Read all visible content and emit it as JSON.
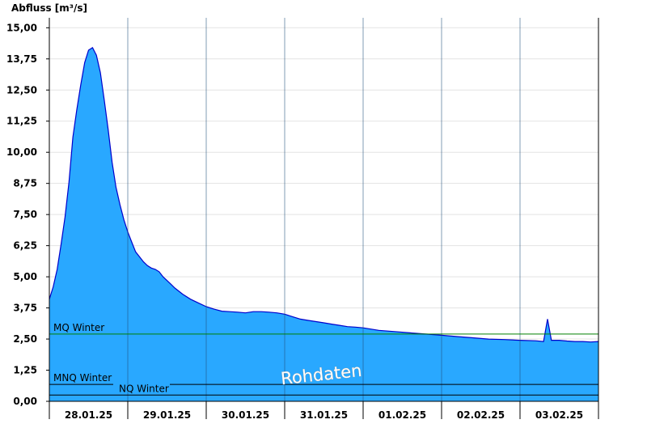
{
  "chart_data": {
    "type": "area",
    "ylabel": "Abfluss [m³/s]",
    "ylim": [
      0,
      15.4
    ],
    "yticks": [
      "0,00",
      "1,25",
      "2,50",
      "3,75",
      "5,00",
      "6,25",
      "7,50",
      "8,75",
      "10,00",
      "11,25",
      "12,50",
      "13,75",
      "15,00"
    ],
    "ytick_values": [
      0,
      1.25,
      2.5,
      3.75,
      5.0,
      6.25,
      7.5,
      8.75,
      10.0,
      11.25,
      12.5,
      13.75,
      15.0
    ],
    "xlim_days": [
      0,
      7
    ],
    "xticks": [
      "28.01.25",
      "29.01.25",
      "30.01.25",
      "31.01.25",
      "01.02.25",
      "02.02.25",
      "03.02.25"
    ],
    "grid": true,
    "fill_color": "#29a8ff",
    "line_color": "#0000cc",
    "series": [
      {
        "x_days": [
          0.0,
          0.05,
          0.1,
          0.15,
          0.2,
          0.25,
          0.3,
          0.35,
          0.4,
          0.45,
          0.5,
          0.55,
          0.6,
          0.65,
          0.7,
          0.75,
          0.8,
          0.85,
          0.9,
          0.95,
          1.0,
          1.05,
          1.1,
          1.15,
          1.2,
          1.25,
          1.3,
          1.35,
          1.4,
          1.45,
          1.5,
          1.55,
          1.6,
          1.7,
          1.8,
          1.9,
          2.0,
          2.1,
          2.2,
          2.3,
          2.4,
          2.5,
          2.6,
          2.7,
          2.8,
          2.9,
          3.0,
          3.1,
          3.2,
          3.3,
          3.4,
          3.5,
          3.6,
          3.7,
          3.8,
          3.9,
          4.0,
          4.2,
          4.4,
          4.6,
          4.8,
          5.0,
          5.2,
          5.4,
          5.6,
          5.8,
          6.0,
          6.2,
          6.3,
          6.35,
          6.4,
          6.5,
          6.6,
          6.7,
          6.8,
          6.9,
          7.0
        ],
        "values": [
          4.1,
          4.6,
          5.3,
          6.3,
          7.4,
          8.8,
          10.6,
          11.7,
          12.7,
          13.6,
          14.1,
          14.2,
          13.9,
          13.2,
          12.1,
          10.9,
          9.6,
          8.6,
          7.9,
          7.3,
          6.8,
          6.4,
          6.0,
          5.8,
          5.6,
          5.45,
          5.35,
          5.3,
          5.2,
          5.0,
          4.85,
          4.7,
          4.55,
          4.3,
          4.1,
          3.95,
          3.8,
          3.7,
          3.62,
          3.6,
          3.58,
          3.55,
          3.6,
          3.6,
          3.58,
          3.55,
          3.5,
          3.4,
          3.3,
          3.25,
          3.2,
          3.15,
          3.1,
          3.05,
          3.0,
          2.98,
          2.95,
          2.85,
          2.8,
          2.75,
          2.7,
          2.65,
          2.6,
          2.55,
          2.5,
          2.48,
          2.45,
          2.43,
          2.4,
          3.3,
          2.45,
          2.45,
          2.42,
          2.4,
          2.4,
          2.38,
          2.4
        ]
      }
    ],
    "reference_lines": [
      {
        "label": "MQ Winter",
        "value": 2.7,
        "color": "#008000"
      },
      {
        "label": "MNQ Winter",
        "value": 0.68,
        "color": "#000000"
      },
      {
        "label": "NQ Winter",
        "value": 0.25,
        "color": "#000000"
      }
    ],
    "watermark": "Rohdaten"
  }
}
